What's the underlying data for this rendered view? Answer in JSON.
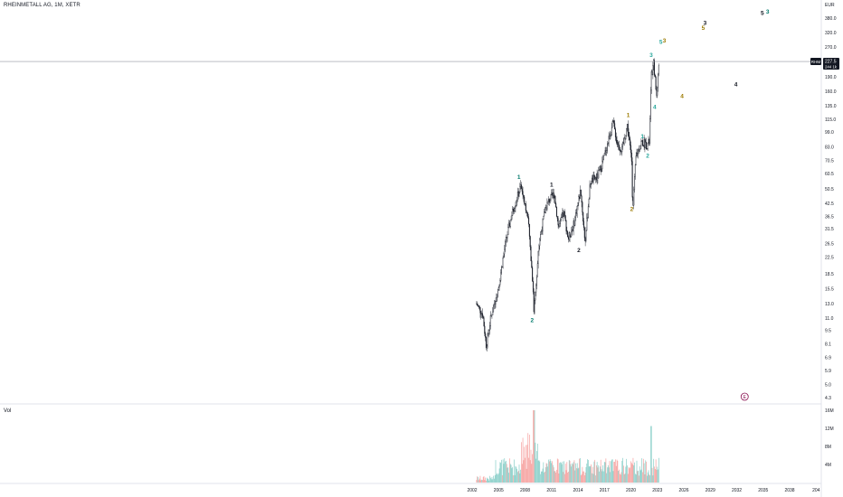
{
  "header": {
    "symbol_title": "RHEINMETALL AG, 1M, XETR",
    "volume_label": "Vol"
  },
  "chart_data": {
    "type": "candlestick",
    "symbol": "RHM",
    "interval": "1M",
    "exchange": "XETR",
    "currency": "EUR",
    "log_scale": true,
    "grid": false,
    "last_price": 227.5,
    "last_volume_text": "244 1k",
    "price_axis_ticks": [
      "380.0",
      "320.0",
      "270.0",
      "230.0",
      "190.0",
      "160.0",
      "135.0",
      "115.0",
      "99.0",
      "83.0",
      "70.5",
      "60.5",
      "50.5",
      "42.5",
      "36.5",
      "31.5",
      "26.5",
      "22.5",
      "18.5",
      "15.5",
      "13.0",
      "11.0",
      "9.5",
      "8.1",
      "6.9",
      "5.9",
      "5.0",
      "4.3"
    ],
    "volume_axis_ticks": [
      "16M",
      "12M",
      "8M",
      "4M"
    ],
    "time_axis_ticks": [
      "2002",
      "2005",
      "2008",
      "2011",
      "2014",
      "2017",
      "2020",
      "2023",
      "2026",
      "2029",
      "2032",
      "2035",
      "2038",
      "204"
    ],
    "price_anchors": [
      {
        "t": 2002.5,
        "p": 13.0
      },
      {
        "t": 2003.2,
        "p": 11.5
      },
      {
        "t": 2003.6,
        "p": 7.9
      },
      {
        "t": 2004.1,
        "p": 11.0
      },
      {
        "t": 2005.0,
        "p": 16.0
      },
      {
        "t": 2005.8,
        "p": 27.0
      },
      {
        "t": 2006.4,
        "p": 36.0
      },
      {
        "t": 2006.9,
        "p": 43.0
      },
      {
        "t": 2007.5,
        "p": 52.0
      },
      {
        "t": 2007.9,
        "p": 45.0
      },
      {
        "t": 2008.4,
        "p": 33.0
      },
      {
        "t": 2008.9,
        "p": 16.0
      },
      {
        "t": 2009.0,
        "p": 12.0
      },
      {
        "t": 2009.6,
        "p": 27.0
      },
      {
        "t": 2010.3,
        "p": 40.0
      },
      {
        "t": 2010.7,
        "p": 44.0
      },
      {
        "t": 2011.3,
        "p": 48.0
      },
      {
        "t": 2011.8,
        "p": 32.0
      },
      {
        "t": 2012.4,
        "p": 38.0
      },
      {
        "t": 2012.9,
        "p": 28.0
      },
      {
        "t": 2013.5,
        "p": 33.0
      },
      {
        "t": 2014.3,
        "p": 50.0
      },
      {
        "t": 2014.8,
        "p": 27.0
      },
      {
        "t": 2015.4,
        "p": 55.0
      },
      {
        "t": 2016.2,
        "p": 58.0
      },
      {
        "t": 2016.9,
        "p": 72.0
      },
      {
        "t": 2017.6,
        "p": 95.0
      },
      {
        "t": 2018.0,
        "p": 110.0
      },
      {
        "t": 2018.5,
        "p": 85.0
      },
      {
        "t": 2019.0,
        "p": 80.0
      },
      {
        "t": 2019.6,
        "p": 108.0
      },
      {
        "t": 2020.1,
        "p": 70.0
      },
      {
        "t": 2020.2,
        "p": 40.0
      },
      {
        "t": 2020.6,
        "p": 75.0
      },
      {
        "t": 2021.2,
        "p": 88.0
      },
      {
        "t": 2021.8,
        "p": 85.0
      },
      {
        "t": 2022.1,
        "p": 88.0
      },
      {
        "t": 2022.3,
        "p": 190.0
      },
      {
        "t": 2022.6,
        "p": 222.0
      },
      {
        "t": 2022.9,
        "p": 150.0
      },
      {
        "t": 2023.2,
        "p": 228.0
      }
    ],
    "wave_labels": [
      {
        "text": "1",
        "t": 2007.3,
        "p": 57.0,
        "color": "#00796b"
      },
      {
        "text": "2",
        "t": 2008.8,
        "p": 10.5,
        "color": "#00796b"
      },
      {
        "text": "1",
        "t": 2011.0,
        "p": 52.0,
        "color": "#131722"
      },
      {
        "text": "2",
        "t": 2014.1,
        "p": 24.0,
        "color": "#131722"
      },
      {
        "text": "1",
        "t": 2019.7,
        "p": 118.0,
        "color": "#9c7a00"
      },
      {
        "text": "2",
        "t": 2020.1,
        "p": 39.0,
        "color": "#9c7a00"
      },
      {
        "text": "1",
        "t": 2021.3,
        "p": 92.0,
        "color": "#26a69a"
      },
      {
        "text": "2",
        "t": 2021.9,
        "p": 73.0,
        "color": "#26a69a"
      },
      {
        "text": "3",
        "t": 2022.3,
        "p": 240.0,
        "color": "#26a69a"
      },
      {
        "text": "4",
        "t": 2022.7,
        "p": 130.0,
        "color": "#26a69a"
      },
      {
        "text": "5",
        "t": 2023.4,
        "p": 280.0,
        "color": "#26a69a"
      },
      {
        "text": "3",
        "t": 2023.8,
        "p": 285.0,
        "color": "#9c7a00"
      },
      {
        "text": "4",
        "t": 2025.8,
        "p": 148.0,
        "color": "#9c7a00"
      },
      {
        "text": "5",
        "t": 2028.2,
        "p": 330.0,
        "color": "#9c7a00"
      },
      {
        "text": "3",
        "t": 2028.4,
        "p": 350.0,
        "color": "#131722"
      },
      {
        "text": "4",
        "t": 2031.9,
        "p": 170.0,
        "color": "#131722"
      },
      {
        "text": "5",
        "t": 2034.9,
        "p": 395.0,
        "color": "#131722"
      },
      {
        "text": "3",
        "t": 2035.5,
        "p": 400.0,
        "color": "#00796b"
      }
    ],
    "event_marker": {
      "text": "E",
      "t": 2032.9,
      "color": "#880e4f"
    }
  },
  "colors": {
    "candle_outline": "#131722",
    "volume_up": "#26a69a",
    "volume_down": "#ef5350",
    "price_line": "#9598a1",
    "price_tag_bg": "#131722",
    "price_tag_text": "#ffffff",
    "axis_text": "#131722",
    "pane_separator": "#e0e3eb"
  }
}
